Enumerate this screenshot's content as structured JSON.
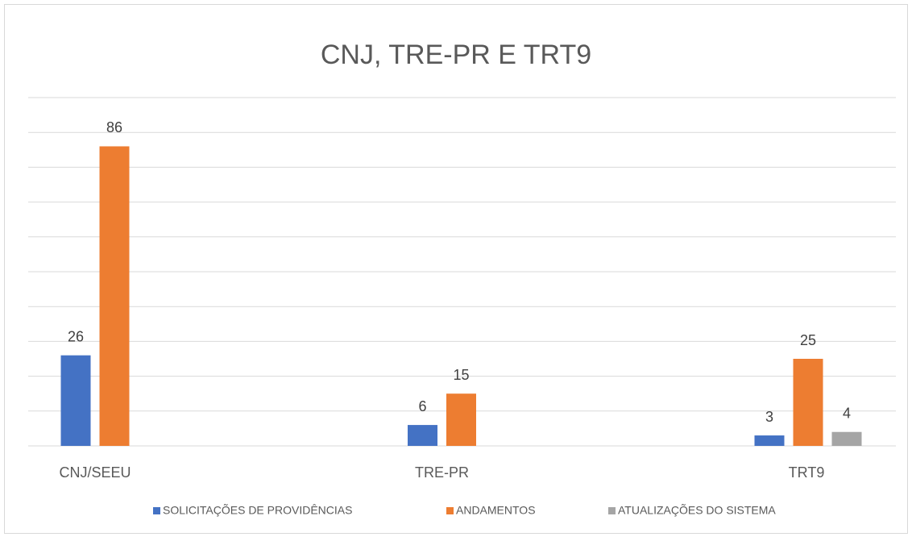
{
  "chart_data": {
    "type": "bar",
    "title": "CNJ, TRE-PR E TRT9",
    "categories": [
      "CNJ/SEEU",
      "TRE-PR",
      "TRT9"
    ],
    "series": [
      {
        "name": "SOLICITAÇÕES DE PROVIDÊNCIAS",
        "color": "#4472c4",
        "values": [
          26,
          6,
          3
        ]
      },
      {
        "name": "ANDAMENTOS",
        "color": "#ed7d31",
        "values": [
          86,
          15,
          25
        ]
      },
      {
        "name": "ATUALIZAÇÕES DO SISTEMA",
        "color": "#a5a5a5",
        "values": [
          null,
          null,
          4
        ]
      }
    ],
    "ylim": [
      0,
      100
    ],
    "yticks": [
      0,
      10,
      20,
      30,
      40,
      50,
      60,
      70,
      80,
      90,
      100
    ],
    "grid": true,
    "legend": "bottom"
  }
}
